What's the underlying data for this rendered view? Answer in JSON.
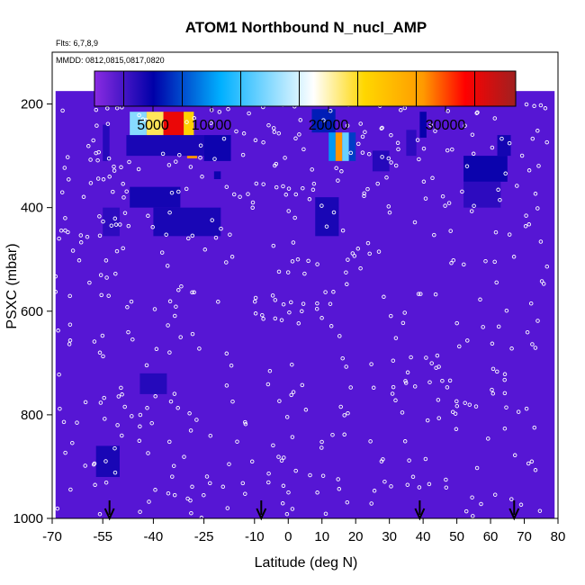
{
  "chart_data": {
    "type": "heatmap",
    "title": "ATOM1 Northbound N_nucl_AMP",
    "subtitle_flights": "Flts: 6,7,8,9",
    "subtitle_dates": "MMDD: 0812,0815,0817,0820",
    "xlabel": "Latitude (deg N)",
    "ylabel": "PSXC (mbar)",
    "xlim": [
      -70,
      80
    ],
    "ylim": [
      1000,
      100
    ],
    "x_ticks": [
      -70,
      -55,
      -40,
      -25,
      -10,
      0,
      10,
      20,
      30,
      40,
      50,
      60,
      70,
      80
    ],
    "y_ticks": [
      200,
      400,
      600,
      800,
      1000
    ],
    "x_tick_labels": [
      "-70",
      "-55",
      "-40",
      "-25",
      "-10",
      "0",
      "10",
      "20",
      "30",
      "40",
      "50",
      "60",
      "70",
      "80"
    ],
    "y_tick_labels": [
      "200",
      "400",
      "600",
      "800",
      "1000"
    ],
    "colorbar": {
      "range": [
        0,
        36000
      ],
      "ticks": [
        5000,
        10000,
        20000,
        30000
      ],
      "tick_labels": [
        "5000",
        "10000",
        "20000",
        "30000"
      ],
      "colors": [
        "#7a1fe6",
        "#0000a8",
        "#00b0ff",
        "#ffffff",
        "#ffd700",
        "#ff0000",
        "#a02020"
      ]
    },
    "background_value": 1500,
    "grid_x": [
      -70,
      80
    ],
    "grid_y": [
      150,
      1000
    ],
    "cells": [
      {
        "x": [
          -55,
          -53
        ],
        "p": [
          240,
          310
        ],
        "v": 3500
      },
      {
        "x": [
          -47,
          -42
        ],
        "p": [
          215,
          265
        ],
        "v": 15000
      },
      {
        "x": [
          -42,
          -37
        ],
        "p": [
          215,
          265
        ],
        "v": 22000
      },
      {
        "x": [
          -37,
          -31
        ],
        "p": [
          215,
          265
        ],
        "v": 32000
      },
      {
        "x": [
          -31,
          -28
        ],
        "p": [
          215,
          265
        ],
        "v": 24000
      },
      {
        "x": [
          -30,
          -27
        ],
        "p": [
          265,
          305
        ],
        "v": 26000
      },
      {
        "x": [
          -48,
          -25
        ],
        "p": [
          260,
          300
        ],
        "v": 4000
      },
      {
        "x": [
          -25,
          -17
        ],
        "p": [
          260,
          310
        ],
        "v": 4500
      },
      {
        "x": [
          -47,
          -32
        ],
        "p": [
          360,
          400
        ],
        "v": 4200
      },
      {
        "x": [
          -55,
          -50
        ],
        "p": [
          400,
          455
        ],
        "v": 3200
      },
      {
        "x": [
          -40,
          -20
        ],
        "p": [
          400,
          455
        ],
        "v": 4000
      },
      {
        "x": [
          -22,
          -20
        ],
        "p": [
          330,
          345
        ],
        "v": 4500
      },
      {
        "x": [
          7,
          14
        ],
        "p": [
          210,
          255
        ],
        "v": 6000
      },
      {
        "x": [
          14,
          16
        ],
        "p": [
          255,
          310
        ],
        "v": 26000
      },
      {
        "x": [
          16,
          18
        ],
        "p": [
          255,
          310
        ],
        "v": 14000
      },
      {
        "x": [
          12,
          14
        ],
        "p": [
          255,
          310
        ],
        "v": 10000
      },
      {
        "x": [
          18,
          20
        ],
        "p": [
          255,
          310
        ],
        "v": 7000
      },
      {
        "x": [
          25,
          30
        ],
        "p": [
          290,
          330
        ],
        "v": 3500
      },
      {
        "x": [
          8,
          15
        ],
        "p": [
          380,
          455
        ],
        "v": 4000
      },
      {
        "x": [
          39,
          41
        ],
        "p": [
          215,
          265
        ],
        "v": 4800
      },
      {
        "x": [
          35,
          38
        ],
        "p": [
          250,
          300
        ],
        "v": 3200
      },
      {
        "x": [
          52,
          65
        ],
        "p": [
          300,
          350
        ],
        "v": 4600
      },
      {
        "x": [
          52,
          63
        ],
        "p": [
          350,
          400
        ],
        "v": 3200
      },
      {
        "x": [
          62,
          66
        ],
        "p": [
          260,
          300
        ],
        "v": 4200
      },
      {
        "x": [
          -44,
          -36
        ],
        "p": [
          720,
          760
        ],
        "v": 3500
      },
      {
        "x": [
          -57,
          -50
        ],
        "p": [
          860,
          920
        ],
        "v": 4000
      }
    ],
    "arrows_lat": [
      -53,
      -8,
      39,
      67
    ]
  }
}
